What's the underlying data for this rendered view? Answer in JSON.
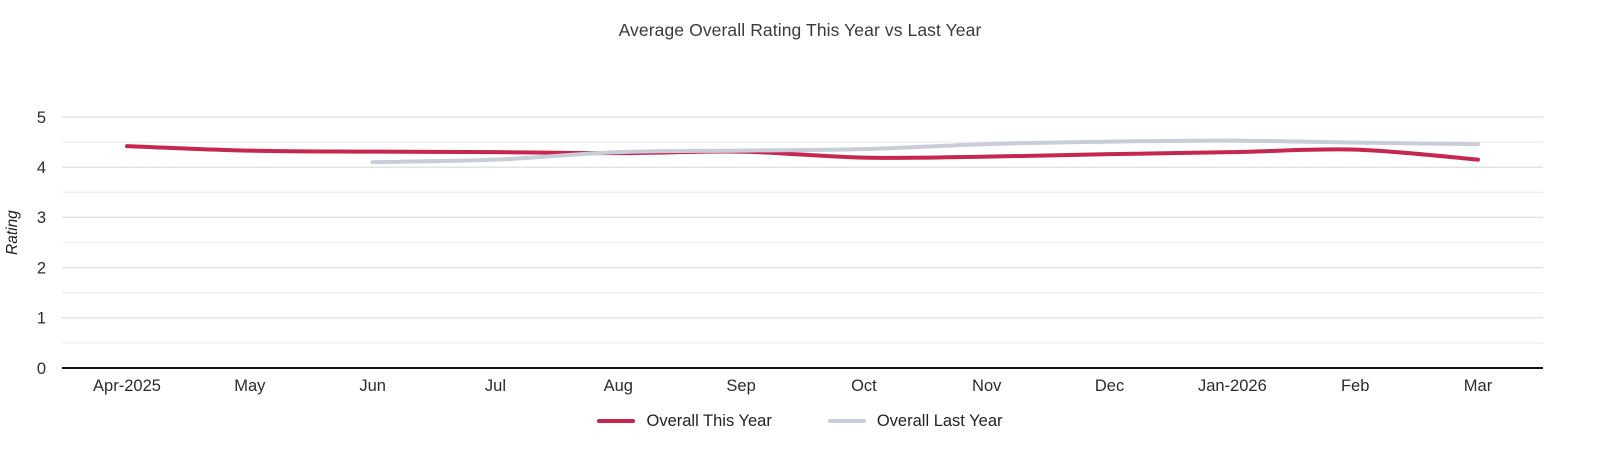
{
  "title": "Average Overall Rating This Year vs Last Year",
  "chart_data": {
    "type": "line",
    "x": [
      "Apr-2025",
      "May",
      "Jun",
      "Jul",
      "Aug",
      "Sep",
      "Oct",
      "Nov",
      "Dec",
      "Jan-2026",
      "Feb",
      "Mar"
    ],
    "series": [
      {
        "name": "Overall This Year",
        "color": "#C5274F",
        "values": [
          4.42,
          4.33,
          4.31,
          4.3,
          4.28,
          4.31,
          4.19,
          4.21,
          4.26,
          4.3,
          4.35,
          4.15
        ]
      },
      {
        "name": "Overall Last Year",
        "color": "#C9CDD9",
        "values": [
          null,
          null,
          4.1,
          4.15,
          4.3,
          4.33,
          4.36,
          4.46,
          4.51,
          4.53,
          4.49,
          4.46
        ]
      }
    ],
    "ylabel": "Rating",
    "xlabel": "",
    "ylim": [
      0,
      5
    ],
    "yticks": [
      0,
      1,
      2,
      3,
      4,
      5
    ],
    "minor_grid_step": 0.5,
    "grid": true,
    "legend_position": "bottom"
  },
  "style": {
    "major_grid_color": "#E2E3E6",
    "minor_grid_color": "#F0F0F3",
    "axis_line_color": "#141414",
    "tick_text_color": "#2c2c2c",
    "title_color": "#3a3a3a",
    "background": "#ffffff"
  }
}
